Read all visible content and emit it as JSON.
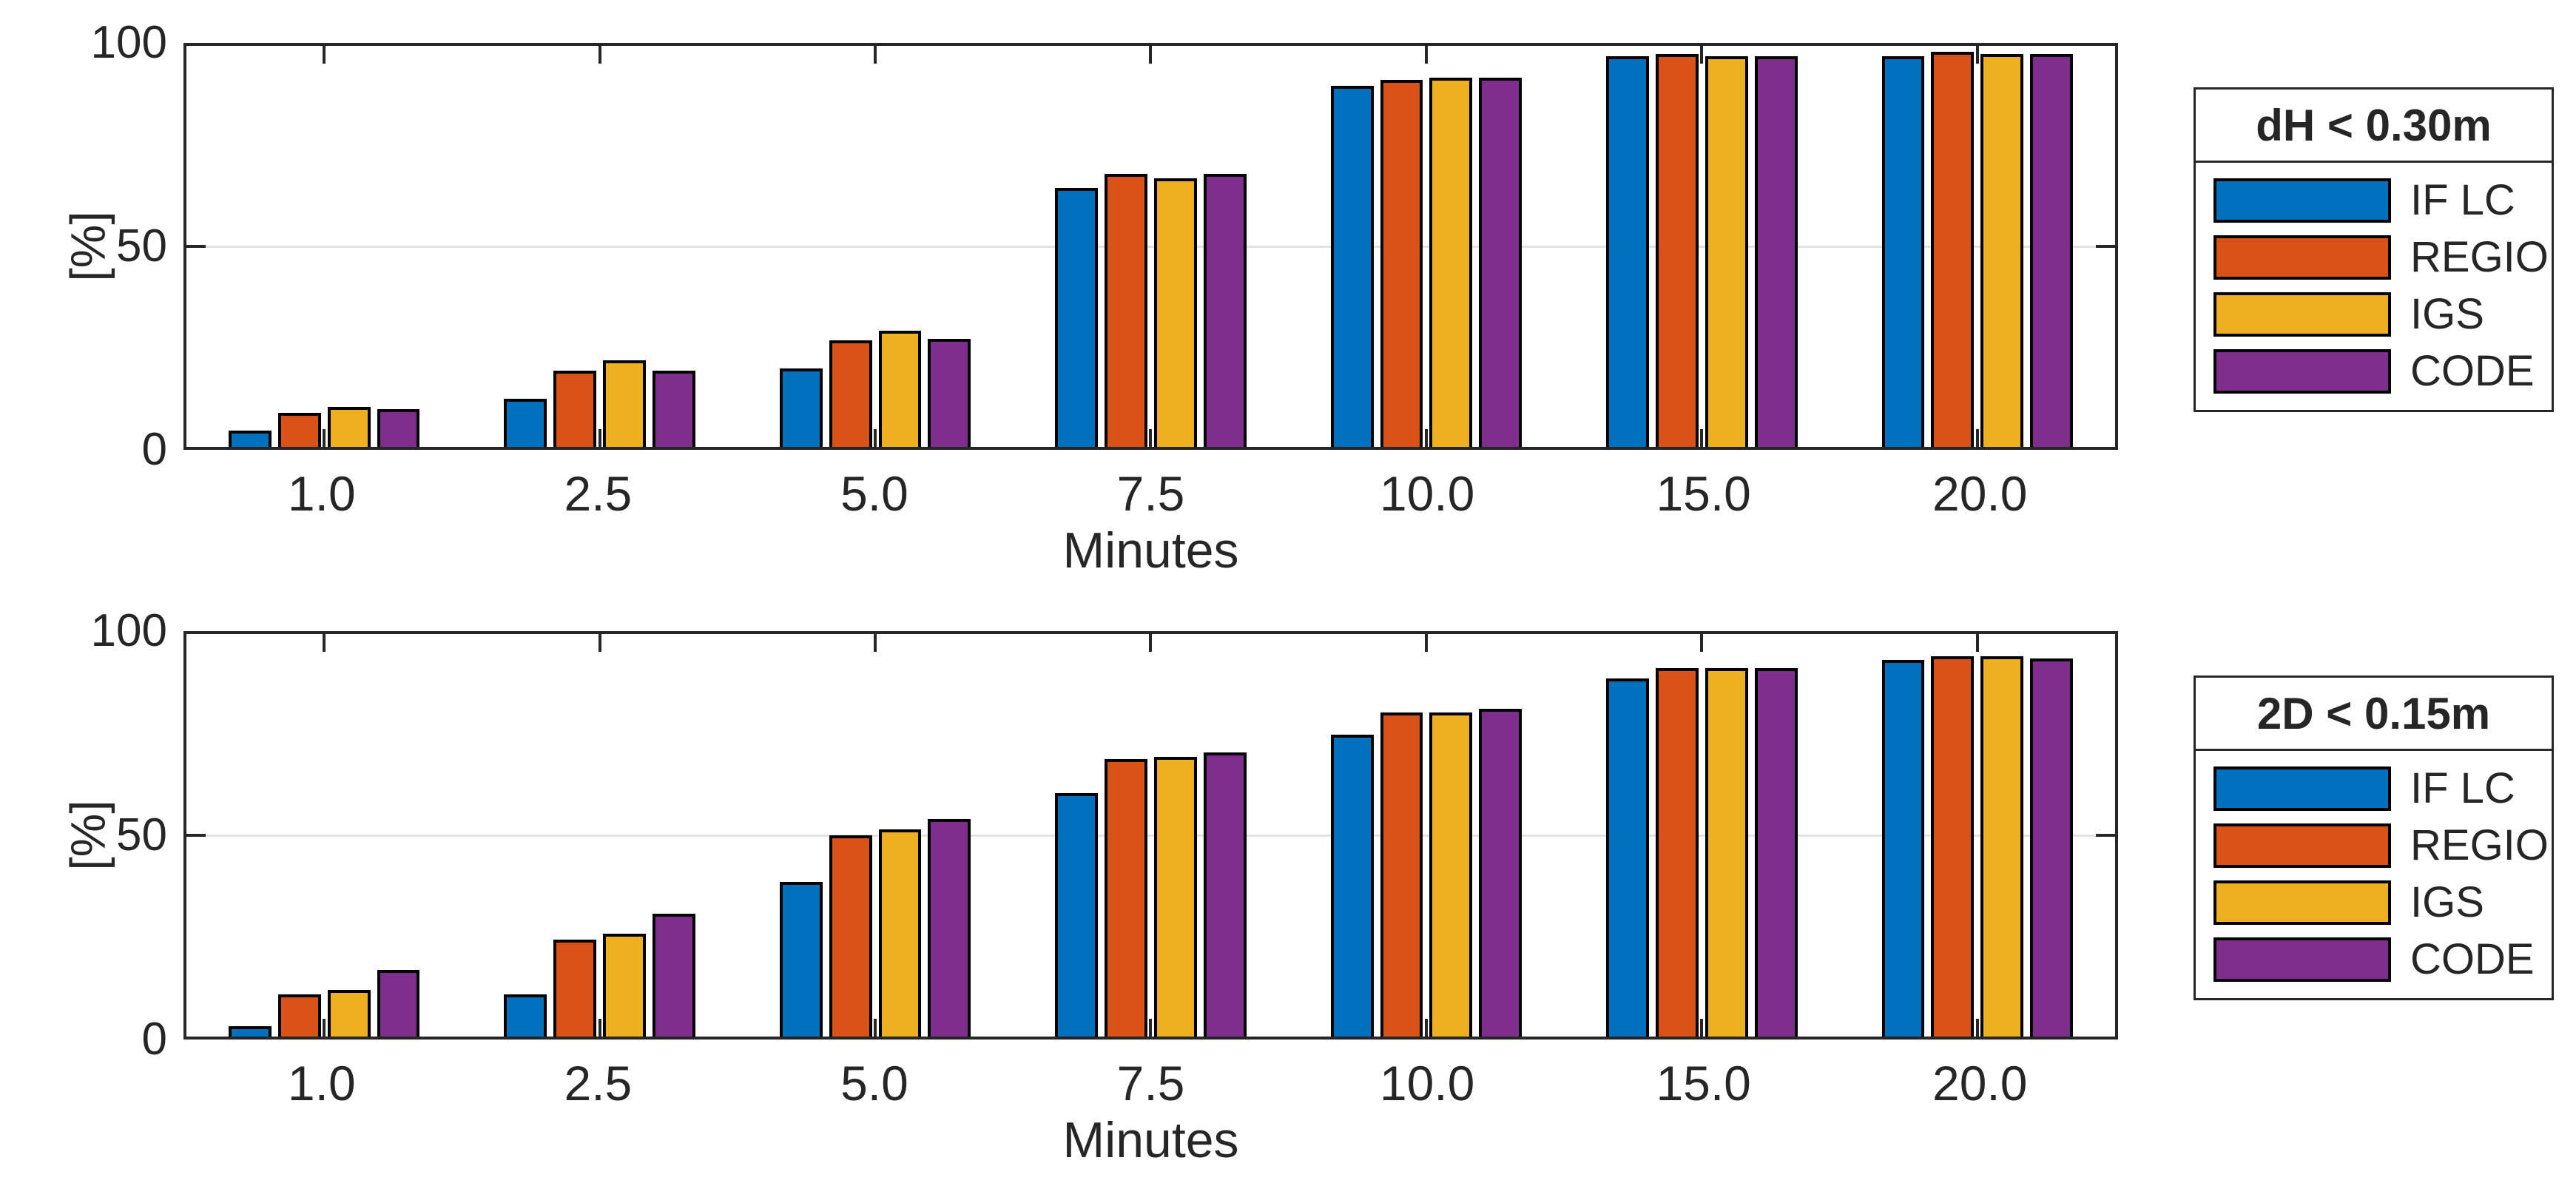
{
  "figure": {
    "background": "#ffffff",
    "axis_color": "#262626",
    "grid_color": "#e2e2e2",
    "bar_edge_color": "#000000"
  },
  "chart_data": [
    {
      "type": "bar",
      "legend_title": "dH < 0.30m",
      "xlabel": "Minutes",
      "ylabel": "[%]",
      "ylim": [
        0,
        100
      ],
      "yticks": [
        0,
        50,
        100
      ],
      "gridline_y": 50,
      "legend_position": "right-outside",
      "categories": [
        "1.0",
        "2.5",
        "5.0",
        "7.5",
        "10.0",
        "15.0",
        "20.0"
      ],
      "series": [
        {
          "name": "IF LC",
          "color": "#0072BD",
          "values": [
            4,
            12,
            19.5,
            64.5,
            90,
            97.5,
            97.5
          ]
        },
        {
          "name": "REGIO",
          "color": "#D95319",
          "values": [
            8.5,
            19,
            26.5,
            68,
            91.5,
            98,
            98.5
          ]
        },
        {
          "name": "IGS",
          "color": "#EDB120",
          "values": [
            10,
            21.5,
            29,
            67,
            92,
            97.5,
            98
          ]
        },
        {
          "name": "CODE",
          "color": "#7E2F8E",
          "values": [
            9.5,
            19,
            27,
            68,
            92,
            97.5,
            98
          ]
        }
      ]
    },
    {
      "type": "bar",
      "legend_title": "2D < 0.15m",
      "xlabel": "Minutes",
      "ylabel": "[%]",
      "ylim": [
        0,
        100
      ],
      "yticks": [
        0,
        50,
        100
      ],
      "gridline_y": 50,
      "legend_position": "right-outside",
      "categories": [
        "1.0",
        "2.5",
        "5.0",
        "7.5",
        "10.0",
        "15.0",
        "20.0"
      ],
      "series": [
        {
          "name": "IF LC",
          "color": "#0072BD",
          "values": [
            2.5,
            10.5,
            38.5,
            60.5,
            75,
            89,
            93.5
          ]
        },
        {
          "name": "REGIO",
          "color": "#D95319",
          "values": [
            10.5,
            24,
            50,
            69,
            80.5,
            91.5,
            94.5
          ]
        },
        {
          "name": "IGS",
          "color": "#EDB120",
          "values": [
            11.5,
            25.5,
            51.5,
            69.5,
            80.5,
            91.5,
            94.5
          ]
        },
        {
          "name": "CODE",
          "color": "#7E2F8E",
          "values": [
            16.5,
            30.5,
            54,
            70.5,
            81.5,
            91.5,
            94
          ]
        }
      ]
    }
  ]
}
